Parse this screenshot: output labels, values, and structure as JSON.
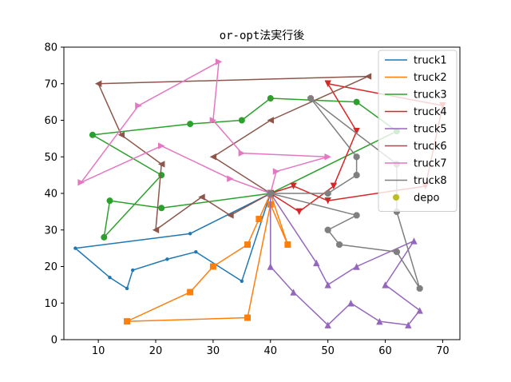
{
  "chart_data": {
    "type": "line",
    "title": "or-opt法実行後",
    "xlabel": "",
    "ylabel": "",
    "xlim": [
      4,
      73
    ],
    "ylim": [
      0,
      80
    ],
    "xticks": [
      10,
      20,
      30,
      40,
      50,
      60,
      70
    ],
    "yticks": [
      0,
      10,
      20,
      30,
      40,
      50,
      60,
      70,
      80
    ],
    "grid": false,
    "legend_position": "top-right",
    "series": [
      {
        "name": "truck1",
        "color": "#1f77b4",
        "marker": "point",
        "x": [
          40,
          26,
          6,
          12,
          15,
          16,
          22,
          27,
          35,
          40
        ],
        "y": [
          40,
          29,
          25,
          17,
          14,
          19,
          22,
          24,
          16,
          40
        ]
      },
      {
        "name": "truck2",
        "color": "#ff7f0e",
        "marker": "square",
        "x": [
          40,
          38,
          36,
          30,
          26,
          15,
          36,
          40,
          43,
          40
        ],
        "y": [
          40,
          33,
          26,
          20,
          13,
          5,
          6,
          37,
          26,
          40
        ]
      },
      {
        "name": "truck3",
        "color": "#2ca02c",
        "marker": "circle",
        "x": [
          40,
          21,
          12,
          11,
          21,
          9,
          26,
          35,
          40,
          55,
          62,
          40
        ],
        "y": [
          40,
          36,
          38,
          28,
          45,
          56,
          59,
          60,
          66,
          65,
          57,
          40
        ]
      },
      {
        "name": "truck4",
        "color": "#d62728",
        "marker": "triangle-down",
        "x": [
          40,
          45,
          51,
          55,
          50,
          70,
          67,
          50,
          44,
          40
        ],
        "y": [
          40,
          35,
          42,
          57,
          70,
          64,
          42,
          38,
          42,
          40
        ]
      },
      {
        "name": "truck5",
        "color": "#9467bd",
        "marker": "triangle-up",
        "x": [
          40,
          40,
          44,
          50,
          54,
          59,
          64,
          66,
          60,
          65,
          55,
          50,
          48,
          40
        ],
        "y": [
          40,
          20,
          13,
          4,
          10,
          5,
          4,
          8,
          15,
          27,
          20,
          15,
          21,
          40
        ]
      },
      {
        "name": "truck6",
        "color": "#8c564b",
        "marker": "triangle-left",
        "x": [
          40,
          33,
          28,
          20,
          21,
          14,
          10,
          57,
          40,
          30,
          40
        ],
        "y": [
          40,
          34,
          39,
          30,
          48,
          56,
          70,
          72,
          60,
          50,
          40
        ]
      },
      {
        "name": "truck7",
        "color": "#e377c2",
        "marker": "triangle-right",
        "x": [
          40,
          33,
          21,
          7,
          17,
          31,
          30,
          35,
          50,
          41,
          40
        ],
        "y": [
          40,
          44,
          53,
          43,
          64,
          76,
          60,
          51,
          50,
          46,
          40
        ]
      },
      {
        "name": "truck8",
        "color": "#7f7f7f",
        "marker": "octagon",
        "x": [
          40,
          50,
          55,
          55,
          47,
          62,
          62,
          66,
          62,
          52,
          50,
          55,
          40
        ],
        "y": [
          40,
          40,
          45,
          50,
          66,
          48,
          35,
          14,
          24,
          26,
          30,
          34,
          40
        ]
      },
      {
        "name": "depo",
        "color": "#bcbd22",
        "marker": "circle",
        "x": [
          62
        ],
        "y": [
          39
        ]
      }
    ]
  }
}
